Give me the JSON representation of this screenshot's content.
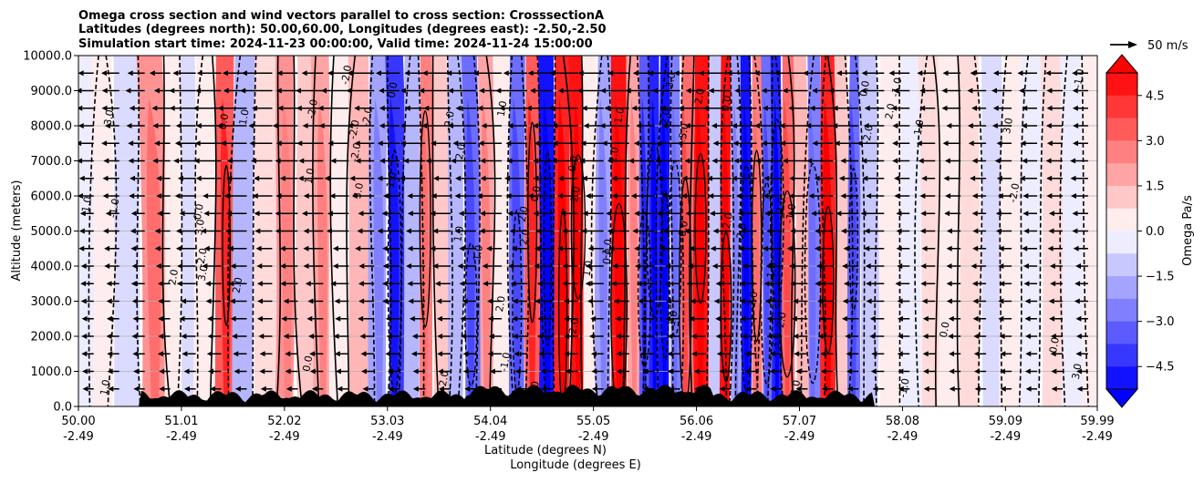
{
  "chart_data": {
    "type": "contour",
    "title": "Omega cross section and wind vectors parallel to cross section: CrosssectionA",
    "subtitle_lines": [
      "Latitudes (degrees north): 50.00,60.00, Longitudes (degrees east): -2.50,-2.50",
      "Simulation start time: 2024-11-23 00:00:00, Valid time: 2024-11-24 15:00:00"
    ],
    "xlabel": "Latitude (degrees N)",
    "xlabel2": "Longitude (degrees E)",
    "ylabel": "Altitude (meters)",
    "xlim": [
      50.0,
      59.99
    ],
    "ylim": [
      0,
      10000
    ],
    "x_ticks": [
      {
        "lat": "50.00",
        "lon": "-2.49"
      },
      {
        "lat": "51.01",
        "lon": "-2.49"
      },
      {
        "lat": "52.02",
        "lon": "-2.49"
      },
      {
        "lat": "53.03",
        "lon": "-2.49"
      },
      {
        "lat": "54.04",
        "lon": "-2.49"
      },
      {
        "lat": "55.05",
        "lon": "-2.49"
      },
      {
        "lat": "56.06",
        "lon": "-2.49"
      },
      {
        "lat": "57.07",
        "lon": "-2.49"
      },
      {
        "lat": "58.08",
        "lon": "-2.49"
      },
      {
        "lat": "59.09",
        "lon": "-2.49"
      },
      {
        "lat": "59.99",
        "lon": "-2.49"
      }
    ],
    "y_ticks": [
      "0.0",
      "1000.0",
      "2000.0",
      "3000.0",
      "4000.0",
      "5000.0",
      "6000.0",
      "7000.0",
      "8000.0",
      "9000.0",
      "10000.0"
    ],
    "grid": true,
    "colorbar": {
      "label": "Omega Pa/s",
      "vmin": -5.25,
      "vmax": 5.25,
      "ticks": [
        "-4.5",
        "-3.0",
        "-1.5",
        "0.0",
        "1.5",
        "3.0",
        "4.5"
      ],
      "low_color": "#0000ff",
      "mid_color": "#ffffff",
      "high_color": "#ff0000",
      "extend": "both"
    },
    "quiver_key": {
      "label": "50 m/s"
    },
    "contour_labels": [
      "0.0",
      "1.0",
      "2.0",
      "3.0",
      "-1.0",
      "-2.0"
    ],
    "omega_bands": [
      {
        "lat": 50.05,
        "omega": -0.4
      },
      {
        "lat": 50.25,
        "omega": 0.2
      },
      {
        "lat": 50.45,
        "omega": -0.8
      },
      {
        "lat": 50.75,
        "omega": 2.4
      },
      {
        "lat": 50.95,
        "omega": 0.5
      },
      {
        "lat": 51.05,
        "omega": -0.6
      },
      {
        "lat": 51.25,
        "omega": 0.5
      },
      {
        "lat": 51.45,
        "omega": 3.5
      },
      {
        "lat": 51.6,
        "omega": -1.6
      },
      {
        "lat": 51.85,
        "omega": 0.8
      },
      {
        "lat": 52.05,
        "omega": 2.2
      },
      {
        "lat": 52.2,
        "omega": 1.2
      },
      {
        "lat": 52.4,
        "omega": 2.0
      },
      {
        "lat": 52.55,
        "omega": 0.4
      },
      {
        "lat": 52.75,
        "omega": 1.6
      },
      {
        "lat": 52.95,
        "omega": -2.0
      },
      {
        "lat": 53.1,
        "omega": -4.0
      },
      {
        "lat": 53.3,
        "omega": -1.5
      },
      {
        "lat": 53.4,
        "omega": 2.5
      },
      {
        "lat": 53.55,
        "omega": 1.0
      },
      {
        "lat": 53.7,
        "omega": -1.5
      },
      {
        "lat": 53.85,
        "omega": -3.0
      },
      {
        "lat": 54.0,
        "omega": 2.0
      },
      {
        "lat": 54.15,
        "omega": 0.5
      },
      {
        "lat": 54.3,
        "omega": -3.0
      },
      {
        "lat": 54.45,
        "omega": 3.5
      },
      {
        "lat": 54.6,
        "omega": -5.0
      },
      {
        "lat": 54.75,
        "omega": 4.5
      },
      {
        "lat": 54.9,
        "omega": 5.0
      },
      {
        "lat": 55.0,
        "omega": 0.5
      },
      {
        "lat": 55.15,
        "omega": -2.0
      },
      {
        "lat": 55.3,
        "omega": 5.0
      },
      {
        "lat": 55.45,
        "omega": 2.0
      },
      {
        "lat": 55.55,
        "omega": -3.5
      },
      {
        "lat": 55.65,
        "omega": -4.5
      },
      {
        "lat": 55.75,
        "omega": -5.0
      },
      {
        "lat": 55.85,
        "omega": -2.5
      },
      {
        "lat": 55.95,
        "omega": 3.0
      },
      {
        "lat": 56.1,
        "omega": 5.0
      },
      {
        "lat": 56.25,
        "omega": -1.0
      },
      {
        "lat": 56.35,
        "omega": 5.0
      },
      {
        "lat": 56.45,
        "omega": -2.0
      },
      {
        "lat": 56.55,
        "omega": -5.0
      },
      {
        "lat": 56.65,
        "omega": 2.5
      },
      {
        "lat": 56.75,
        "omega": -3.0
      },
      {
        "lat": 56.85,
        "omega": -4.5
      },
      {
        "lat": 56.95,
        "omega": 3.0
      },
      {
        "lat": 57.1,
        "omega": 1.5
      },
      {
        "lat": 57.2,
        "omega": -2.5
      },
      {
        "lat": 57.35,
        "omega": 4.5
      },
      {
        "lat": 57.5,
        "omega": 1.0
      },
      {
        "lat": 57.6,
        "omega": -3.0
      },
      {
        "lat": 57.75,
        "omega": -1.2
      },
      {
        "lat": 57.95,
        "omega": 0.3
      },
      {
        "lat": 58.15,
        "omega": -0.5
      },
      {
        "lat": 58.35,
        "omega": 0.6
      },
      {
        "lat": 58.55,
        "omega": 0.2
      },
      {
        "lat": 58.75,
        "omega": 0.8
      },
      {
        "lat": 58.95,
        "omega": -0.6
      },
      {
        "lat": 59.15,
        "omega": 0.3
      },
      {
        "lat": 59.35,
        "omega": -0.5
      },
      {
        "lat": 59.55,
        "omega": 0.9
      },
      {
        "lat": 59.75,
        "omega": -0.3
      },
      {
        "lat": 59.95,
        "omega": 0.2
      }
    ]
  }
}
